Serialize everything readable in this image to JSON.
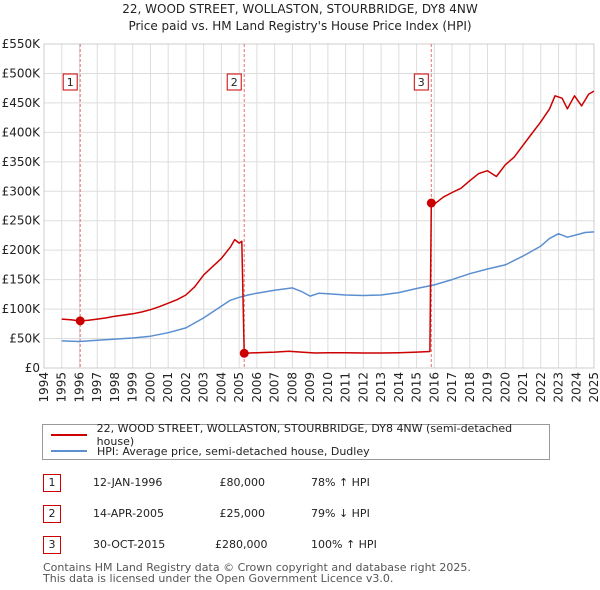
{
  "chart_data": {
    "type": "line",
    "title": "22, WOOD STREET, WOLLASTON, STOURBRIDGE, DY8 4NW",
    "subtitle": "Price paid vs. HM Land Registry's House Price Index (HPI)",
    "xlabel": "",
    "ylabel": "",
    "xlim": [
      1994,
      2025
    ],
    "ylim": [
      0,
      550000
    ],
    "y_ticks": [
      {
        "value": 0,
        "label": "£0"
      },
      {
        "value": 50000,
        "label": "£50K"
      },
      {
        "value": 100000,
        "label": "£100K"
      },
      {
        "value": 150000,
        "label": "£150K"
      },
      {
        "value": 200000,
        "label": "£200K"
      },
      {
        "value": 250000,
        "label": "£250K"
      },
      {
        "value": 300000,
        "label": "£300K"
      },
      {
        "value": 350000,
        "label": "£350K"
      },
      {
        "value": 400000,
        "label": "£400K"
      },
      {
        "value": 450000,
        "label": "£450K"
      },
      {
        "value": 500000,
        "label": "£500K"
      },
      {
        "value": 550000,
        "label": "£550K"
      }
    ],
    "x_ticks": [
      "1994",
      "1995",
      "1996",
      "1997",
      "1998",
      "1999",
      "2000",
      "2001",
      "2002",
      "2003",
      "2004",
      "2005",
      "2006",
      "2007",
      "2008",
      "2009",
      "2010",
      "2011",
      "2012",
      "2013",
      "2014",
      "2015",
      "2016",
      "2017",
      "2018",
      "2019",
      "2020",
      "2021",
      "2022",
      "2023",
      "2024",
      "2025"
    ],
    "grid": true,
    "series": [
      {
        "name": "22, WOOD STREET, WOLLASTON, STOURBRIDGE, DY8 4NW (semi-detached house)",
        "color": "#cc0000",
        "points": [
          [
            1995.0,
            83000
          ],
          [
            1995.5,
            82000
          ],
          [
            1996.04,
            80000
          ],
          [
            1996.5,
            81000
          ],
          [
            1997.0,
            83000
          ],
          [
            1997.5,
            85000
          ],
          [
            1998.0,
            88000
          ],
          [
            1998.5,
            90000
          ],
          [
            1999.0,
            92000
          ],
          [
            1999.5,
            95000
          ],
          [
            2000.0,
            99000
          ],
          [
            2000.5,
            104000
          ],
          [
            2001.0,
            110000
          ],
          [
            2001.5,
            116000
          ],
          [
            2002.0,
            124000
          ],
          [
            2002.5,
            138000
          ],
          [
            2003.0,
            158000
          ],
          [
            2003.5,
            172000
          ],
          [
            2004.0,
            186000
          ],
          [
            2004.5,
            205000
          ],
          [
            2004.75,
            218000
          ],
          [
            2005.0,
            212000
          ],
          [
            2005.15,
            215000
          ],
          [
            2005.285,
            25000
          ],
          [
            2006.0,
            26000
          ],
          [
            2007.0,
            27000
          ],
          [
            2007.8,
            28500
          ],
          [
            2008.5,
            27000
          ],
          [
            2009.3,
            25500
          ],
          [
            2010.0,
            26000
          ],
          [
            2011.0,
            26000
          ],
          [
            2012.0,
            25500
          ],
          [
            2013.0,
            25500
          ],
          [
            2014.0,
            26000
          ],
          [
            2015.0,
            27000
          ],
          [
            2015.75,
            28000
          ],
          [
            2015.83,
            280000
          ],
          [
            2016.0,
            278000
          ],
          [
            2016.5,
            290000
          ],
          [
            2017.0,
            298000
          ],
          [
            2017.5,
            305000
          ],
          [
            2018.0,
            318000
          ],
          [
            2018.5,
            330000
          ],
          [
            2019.0,
            335000
          ],
          [
            2019.5,
            325000
          ],
          [
            2020.0,
            345000
          ],
          [
            2020.5,
            358000
          ],
          [
            2021.0,
            378000
          ],
          [
            2021.5,
            398000
          ],
          [
            2022.0,
            418000
          ],
          [
            2022.5,
            440000
          ],
          [
            2022.8,
            462000
          ],
          [
            2023.2,
            458000
          ],
          [
            2023.5,
            440000
          ],
          [
            2023.9,
            462000
          ],
          [
            2024.3,
            445000
          ],
          [
            2024.7,
            465000
          ],
          [
            2025.0,
            470000
          ]
        ]
      },
      {
        "name": "HPI: Average price, semi-detached house, Dudley",
        "color": "#5b8fd0",
        "points": [
          [
            1995.0,
            46000
          ],
          [
            1996.0,
            45000
          ],
          [
            1997.0,
            47000
          ],
          [
            1998.0,
            49000
          ],
          [
            1999.0,
            51000
          ],
          [
            2000.0,
            54000
          ],
          [
            2001.0,
            60000
          ],
          [
            2002.0,
            68000
          ],
          [
            2003.0,
            85000
          ],
          [
            2004.0,
            105000
          ],
          [
            2004.5,
            115000
          ],
          [
            2005.0,
            120000
          ],
          [
            2005.5,
            124000
          ],
          [
            2006.0,
            127000
          ],
          [
            2007.0,
            132000
          ],
          [
            2008.0,
            136000
          ],
          [
            2008.5,
            130000
          ],
          [
            2009.0,
            122000
          ],
          [
            2009.5,
            127000
          ],
          [
            2010.0,
            126000
          ],
          [
            2011.0,
            124000
          ],
          [
            2012.0,
            123000
          ],
          [
            2013.0,
            124000
          ],
          [
            2014.0,
            128000
          ],
          [
            2015.0,
            135000
          ],
          [
            2016.0,
            141000
          ],
          [
            2017.0,
            150000
          ],
          [
            2018.0,
            160000
          ],
          [
            2019.0,
            168000
          ],
          [
            2020.0,
            175000
          ],
          [
            2021.0,
            190000
          ],
          [
            2022.0,
            207000
          ],
          [
            2022.5,
            220000
          ],
          [
            2023.0,
            228000
          ],
          [
            2023.5,
            222000
          ],
          [
            2024.0,
            226000
          ],
          [
            2024.5,
            230000
          ],
          [
            2025.0,
            231000
          ]
        ]
      }
    ],
    "annotations": [
      {
        "label": "1",
        "x": 1996.04,
        "value": 80000
      },
      {
        "label": "2",
        "x": 2005.285,
        "value": 25000
      },
      {
        "label": "3",
        "x": 2015.83,
        "value": 280000
      }
    ]
  },
  "legend": {
    "items": [
      {
        "label": "22, WOOD STREET, WOLLASTON, STOURBRIDGE, DY8 4NW (semi-detached house)",
        "color": "#cc0000"
      },
      {
        "label": "HPI: Average price, semi-detached house, Dudley",
        "color": "#5b8fd0"
      }
    ]
  },
  "sales": [
    {
      "num": "1",
      "date": "12-JAN-1996",
      "price": "£80,000",
      "hpi": "78% ↑ HPI"
    },
    {
      "num": "2",
      "date": "14-APR-2005",
      "price": "£25,000",
      "hpi": "79% ↓ HPI"
    },
    {
      "num": "3",
      "date": "30-OCT-2015",
      "price": "£280,000",
      "hpi": "100% ↑ HPI"
    }
  ],
  "footer": {
    "line1": "Contains HM Land Registry data © Crown copyright and database right 2025.",
    "line2": "This data is licensed under the Open Government Licence v3.0."
  }
}
